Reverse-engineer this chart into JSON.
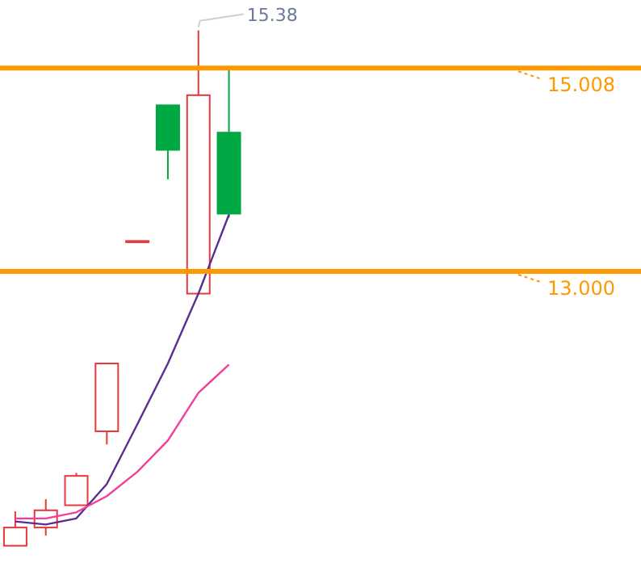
{
  "chart_data": {
    "type": "candlestick",
    "categories": [
      null,
      null,
      null,
      null,
      null,
      null,
      null,
      null,
      null,
      null,
      null,
      null,
      null,
      null,
      null,
      null,
      null,
      null,
      null,
      null,
      null
    ],
    "ohlc": [
      [
        10.29,
        10.63,
        10.29,
        10.47
      ],
      [
        10.47,
        10.75,
        10.39,
        10.64
      ],
      [
        10.69,
        11.01,
        10.69,
        10.98
      ],
      [
        11.42,
        12.09,
        11.29,
        12.09
      ],
      [
        13.3,
        13.3,
        13.3,
        13.3
      ],
      [
        14.64,
        14.64,
        13.91,
        14.2
      ],
      [
        12.78,
        15.38,
        12.78,
        14.74
      ],
      [
        14.37,
        15.01,
        13.53,
        13.57
      ],
      null,
      null,
      null,
      null,
      null,
      null,
      null,
      null,
      null,
      null,
      null,
      null,
      null
    ],
    "colors": [
      "#e8383d",
      "#e8383d",
      "#e8383d",
      "#e8383d",
      "#e8383d",
      "#00a843",
      "#e8383d",
      "#00a843",
      null,
      null,
      null,
      null,
      null,
      null,
      null,
      null,
      null,
      null,
      null,
      null,
      null
    ],
    "series": [
      {
        "type": "line",
        "color": "#5a2d91",
        "values": [
          10.53,
          10.5,
          10.56,
          10.9,
          11.49,
          12.09,
          12.78,
          13.56,
          null,
          null,
          null,
          null,
          null,
          null,
          null,
          null,
          null,
          null,
          null,
          null,
          null
        ]
      },
      {
        "type": "line",
        "color": "#f0409a",
        "values": [
          10.56,
          10.56,
          10.62,
          10.78,
          11.02,
          11.33,
          11.8,
          12.08,
          null,
          null,
          null,
          null,
          null,
          null,
          null,
          null,
          null,
          null,
          null,
          null,
          null
        ]
      }
    ],
    "ref_lines": [
      {
        "axis": "y",
        "value": 15.008,
        "color": "#ff9900"
      },
      {
        "axis": "y",
        "value": 13.0,
        "color": "#ff9900"
      }
    ],
    "ylim": [
      10.08,
      15.68
    ],
    "yticks": [
      {
        "value": 15.008,
        "label": "15.008"
      },
      {
        "value": 13.0,
        "label": "13.000"
      }
    ],
    "annotations": [
      "15.38"
    ]
  }
}
